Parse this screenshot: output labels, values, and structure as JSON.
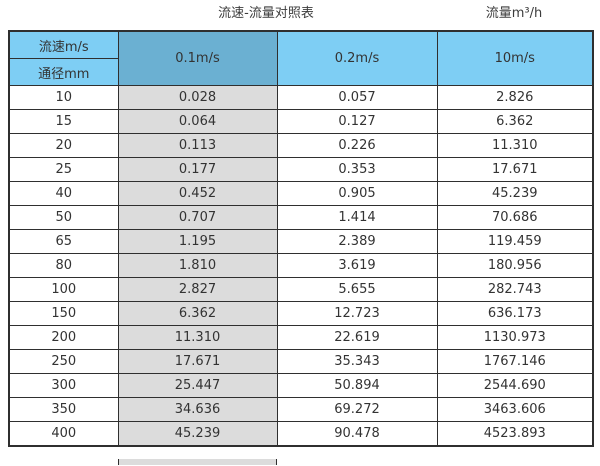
{
  "colors": {
    "header_light_blue": "#7ECEF4",
    "header_dark_blue": "#6BB0D2",
    "column_gray": "#DCDCDC",
    "border": "#2F2F2F"
  },
  "captions": {
    "main_title": "流速-流量对照表",
    "unit_title": "流量m³/h"
  },
  "chart_data": {
    "type": "table",
    "title": "流速-流量对照表",
    "unit_label": "流量m³/h",
    "corner": {
      "top": "流速m/s",
      "bottom": "通径mm"
    },
    "velocity_columns": [
      "0.1m/s",
      "0.2m/s",
      "10m/s"
    ],
    "rows": [
      {
        "diameter": "10",
        "values": [
          "0.028",
          "0.057",
          "2.826"
        ]
      },
      {
        "diameter": "15",
        "values": [
          "0.064",
          "0.127",
          "6.362"
        ]
      },
      {
        "diameter": "20",
        "values": [
          "0.113",
          "0.226",
          "11.310"
        ]
      },
      {
        "diameter": "25",
        "values": [
          "0.177",
          "0.353",
          "17.671"
        ]
      },
      {
        "diameter": "40",
        "values": [
          "0.452",
          "0.905",
          "45.239"
        ]
      },
      {
        "diameter": "50",
        "values": [
          "0.707",
          "1.414",
          "70.686"
        ]
      },
      {
        "diameter": "65",
        "values": [
          "1.195",
          "2.389",
          "119.459"
        ]
      },
      {
        "diameter": "80",
        "values": [
          "1.810",
          "3.619",
          "180.956"
        ]
      },
      {
        "diameter": "100",
        "values": [
          "2.827",
          "5.655",
          "282.743"
        ]
      },
      {
        "diameter": "150",
        "values": [
          "6.362",
          "12.723",
          "636.173"
        ]
      },
      {
        "diameter": "200",
        "values": [
          "11.310",
          "22.619",
          "1130.973"
        ]
      },
      {
        "diameter": "250",
        "values": [
          "17.671",
          "35.343",
          "1767.146"
        ]
      },
      {
        "diameter": "300",
        "values": [
          "25.447",
          "50.894",
          "2544.690"
        ]
      },
      {
        "diameter": "350",
        "values": [
          "34.636",
          "69.272",
          "3463.606"
        ]
      },
      {
        "diameter": "400",
        "values": [
          "45.239",
          "90.478",
          "4523.893"
        ]
      }
    ]
  }
}
